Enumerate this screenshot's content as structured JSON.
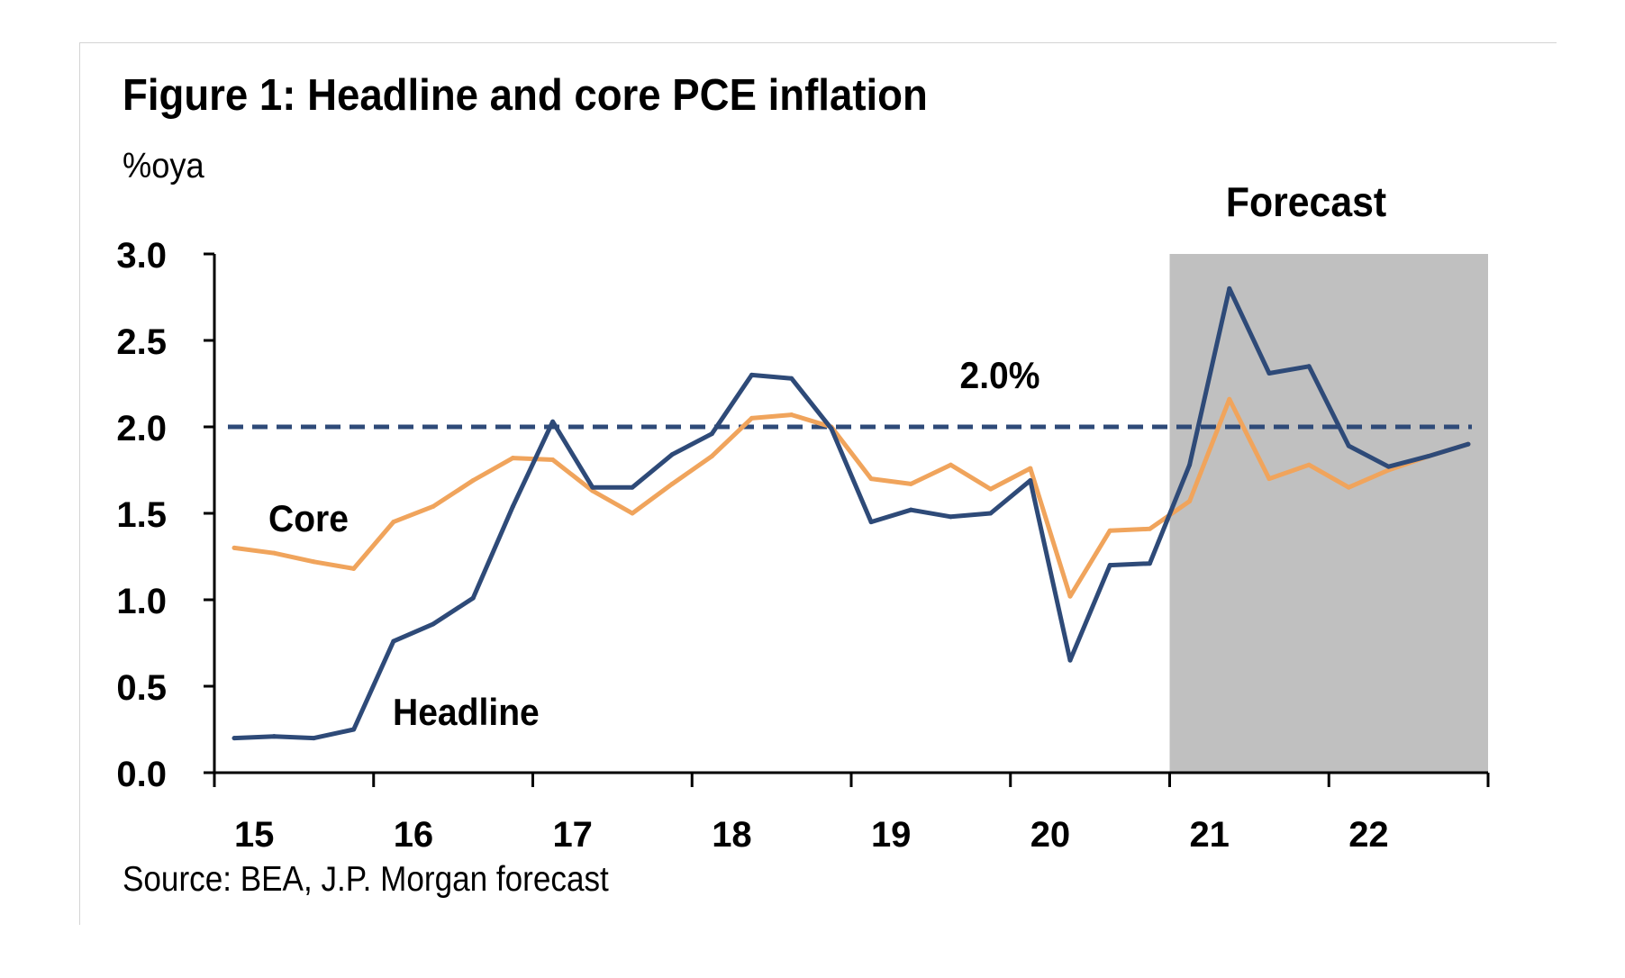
{
  "title": "Figure 1: Headline and core PCE inflation",
  "source": "Source: BEA, J.P. Morgan forecast",
  "chart_data": {
    "type": "line",
    "ylabel": "%oya",
    "ylim": [
      0,
      3
    ],
    "yticks": [
      "0.0",
      "0.5",
      "1.0",
      "1.5",
      "2.0",
      "2.5",
      "3.0"
    ],
    "xticks": [
      "15",
      "16",
      "17",
      "18",
      "19",
      "20",
      "21",
      "22"
    ],
    "xlim": [
      2015,
      2023
    ],
    "forecast_label": "Forecast",
    "forecast_start": 2021,
    "reference_line": {
      "value": 2.0,
      "label": "2.0%",
      "color": "#2e4a78"
    },
    "x": [
      2015.125,
      2015.375,
      2015.625,
      2015.875,
      2016.125,
      2016.375,
      2016.625,
      2016.875,
      2017.125,
      2017.375,
      2017.625,
      2017.875,
      2018.125,
      2018.375,
      2018.625,
      2018.875,
      2019.125,
      2019.375,
      2019.625,
      2019.875,
      2020.125,
      2020.375,
      2020.625,
      2020.875,
      2021.125,
      2021.375,
      2021.625,
      2021.875,
      2022.125,
      2022.375,
      2022.625,
      2022.875
    ],
    "series": [
      {
        "name": "Core",
        "color": "#f0a45c",
        "values": [
          1.3,
          1.27,
          1.22,
          1.18,
          1.45,
          1.54,
          1.69,
          1.82,
          1.81,
          1.63,
          1.5,
          1.67,
          1.83,
          2.05,
          2.07,
          2.0,
          1.7,
          1.67,
          1.78,
          1.64,
          1.76,
          1.02,
          1.4,
          1.41,
          1.57,
          2.16,
          1.7,
          1.78,
          1.65,
          1.75,
          1.83,
          1.9
        ]
      },
      {
        "name": "Headline",
        "color": "#2e4a78",
        "values": [
          0.2,
          0.21,
          0.2,
          0.25,
          0.76,
          0.86,
          1.01,
          1.54,
          2.03,
          1.65,
          1.65,
          1.84,
          1.96,
          2.3,
          2.28,
          1.99,
          1.45,
          1.52,
          1.48,
          1.5,
          1.69,
          0.65,
          1.2,
          1.21,
          1.78,
          2.8,
          2.31,
          2.35,
          1.89,
          1.77,
          1.83,
          1.9
        ]
      }
    ]
  }
}
